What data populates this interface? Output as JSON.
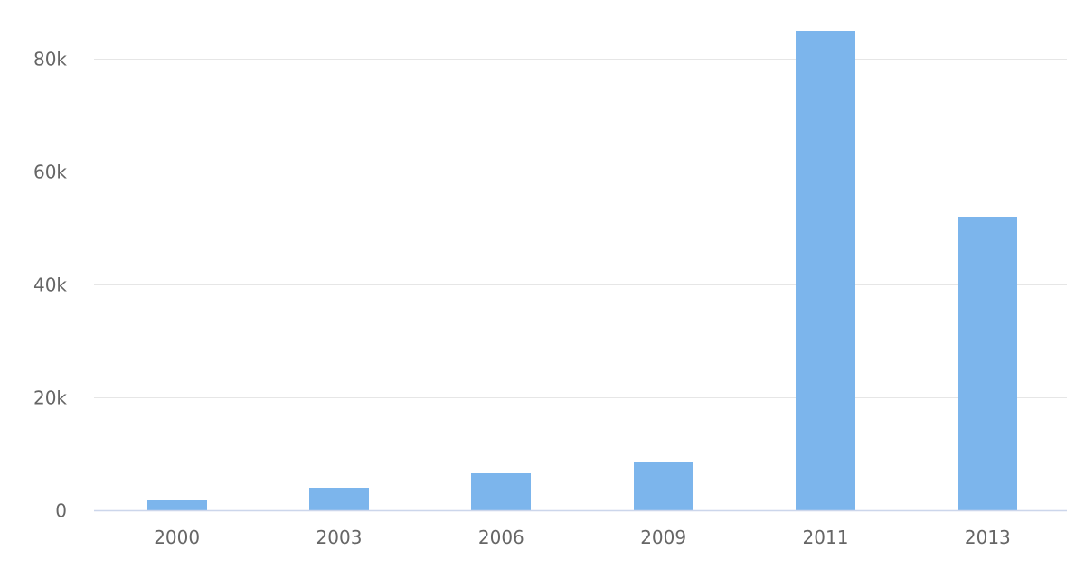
{
  "chart_data": {
    "type": "bar",
    "categories": [
      "2000",
      "2003",
      "2006",
      "2009",
      "2011",
      "2013"
    ],
    "values": [
      1700,
      4000,
      6500,
      8500,
      85000,
      52000
    ],
    "title": "",
    "xlabel": "",
    "ylabel": "",
    "ylim": [
      0,
      85000
    ],
    "yticks": [
      0,
      20000,
      40000,
      60000,
      80000
    ],
    "ytick_labels": [
      "0",
      "20k",
      "40k",
      "60k",
      "80k"
    ],
    "grid": true,
    "legend": "none",
    "colors": {
      "bar": "#7cb5ec",
      "grid": "#e6e6e6",
      "axis": "#ccd6eb",
      "text": "#666666"
    }
  }
}
